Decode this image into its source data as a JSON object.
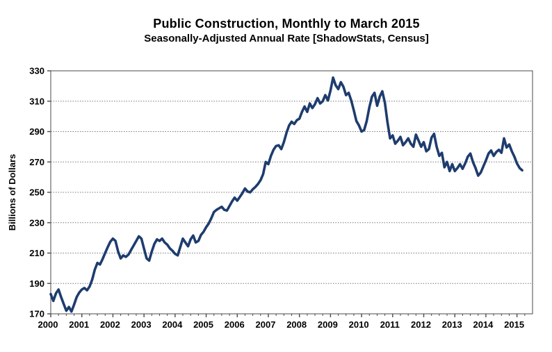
{
  "header": {
    "title": "Public Construction, Monthly to March 2015",
    "subtitle": "Seasonally-Adjusted Annual Rate [ShadowStats, Census]"
  },
  "chart_data": {
    "type": "line",
    "title": "Public Construction, Monthly to March 2015",
    "subtitle": "Seasonally-Adjusted Annual Rate [ShadowStats, Census]",
    "xlabel": "",
    "ylabel": "Billions of Dollars",
    "ylim": [
      170,
      330
    ],
    "y_ticks": [
      170,
      190,
      210,
      230,
      250,
      270,
      290,
      310,
      330
    ],
    "x_ticks": [
      2000,
      2001,
      2002,
      2003,
      2004,
      2005,
      2006,
      2007,
      2008,
      2009,
      2010,
      2011,
      2012,
      2013,
      2014,
      2015
    ],
    "x_axis_span_years": 15.5,
    "x_range": [
      "2000-01",
      "2015-03"
    ],
    "grid": "horizontal-dotted",
    "legend": "none",
    "background": "#FFFFFF",
    "line_color": "#1E3C6E",
    "grid_color": "#777777",
    "axis_color": "#4A4A4A",
    "text_color": "#000000",
    "series": [
      {
        "name": "Public construction spending, seasonally-adjusted annual rate",
        "unit": "billions of dollars",
        "frequency": "monthly",
        "values_by_year": {
          "2000": [
            183,
            178.5,
            183.5,
            186,
            181,
            176.5,
            172,
            174.5,
            171.5,
            176,
            181,
            184
          ],
          "2001": [
            186,
            187,
            185.5,
            188,
            192.5,
            199,
            203.5,
            202.5,
            206,
            210,
            214,
            217.5
          ],
          "2002": [
            219.5,
            218,
            211,
            206.5,
            208.5,
            207.5,
            209,
            212,
            215,
            218,
            221,
            219.5
          ],
          "2003": [
            213,
            206.5,
            205,
            211,
            216,
            219,
            218,
            219.5,
            217,
            215.5,
            213,
            211.5
          ],
          "2004": [
            209.5,
            208.5,
            214,
            219.5,
            217,
            214.5,
            219,
            221.5,
            217,
            218,
            222,
            224
          ],
          "2005": [
            227,
            229.5,
            233,
            237,
            238.5,
            239.5,
            240.5,
            238.5,
            238,
            241,
            244,
            246.5
          ],
          "2006": [
            244.5,
            247,
            249.5,
            252.5,
            250.5,
            250,
            252,
            253.5,
            255.5,
            258,
            262,
            270
          ],
          "2007": [
            268.5,
            274,
            278,
            280.5,
            281,
            278.5,
            283,
            289,
            294,
            296.5,
            295,
            297.5
          ],
          "2008": [
            298.5,
            303,
            306.5,
            303,
            308.5,
            305.5,
            308,
            312,
            308.5,
            310,
            314,
            310.5
          ],
          "2009": [
            317,
            325.5,
            320.5,
            318,
            322.5,
            319.5,
            314,
            315.5,
            310.5,
            304,
            297,
            294
          ],
          "2010": [
            290,
            291,
            297,
            306,
            313,
            315.5,
            307,
            313,
            316.5,
            309,
            296,
            285.5
          ],
          "2011": [
            287.5,
            282,
            284,
            286.5,
            281,
            283,
            285.5,
            282,
            280,
            288,
            284,
            280
          ],
          "2012": [
            283,
            277,
            278.5,
            286,
            288.5,
            280,
            274,
            276,
            266.5,
            270,
            264,
            268.5
          ],
          "2013": [
            264,
            266,
            268.5,
            265.5,
            269,
            273.5,
            275.5,
            270,
            266,
            261,
            263,
            267
          ],
          "2014": [
            271,
            275.5,
            277.5,
            274,
            276.5,
            278,
            276,
            285.5,
            279.5,
            281.5,
            277,
            273.5
          ],
          "2015": [
            269,
            266,
            264.5
          ]
        }
      }
    ]
  }
}
